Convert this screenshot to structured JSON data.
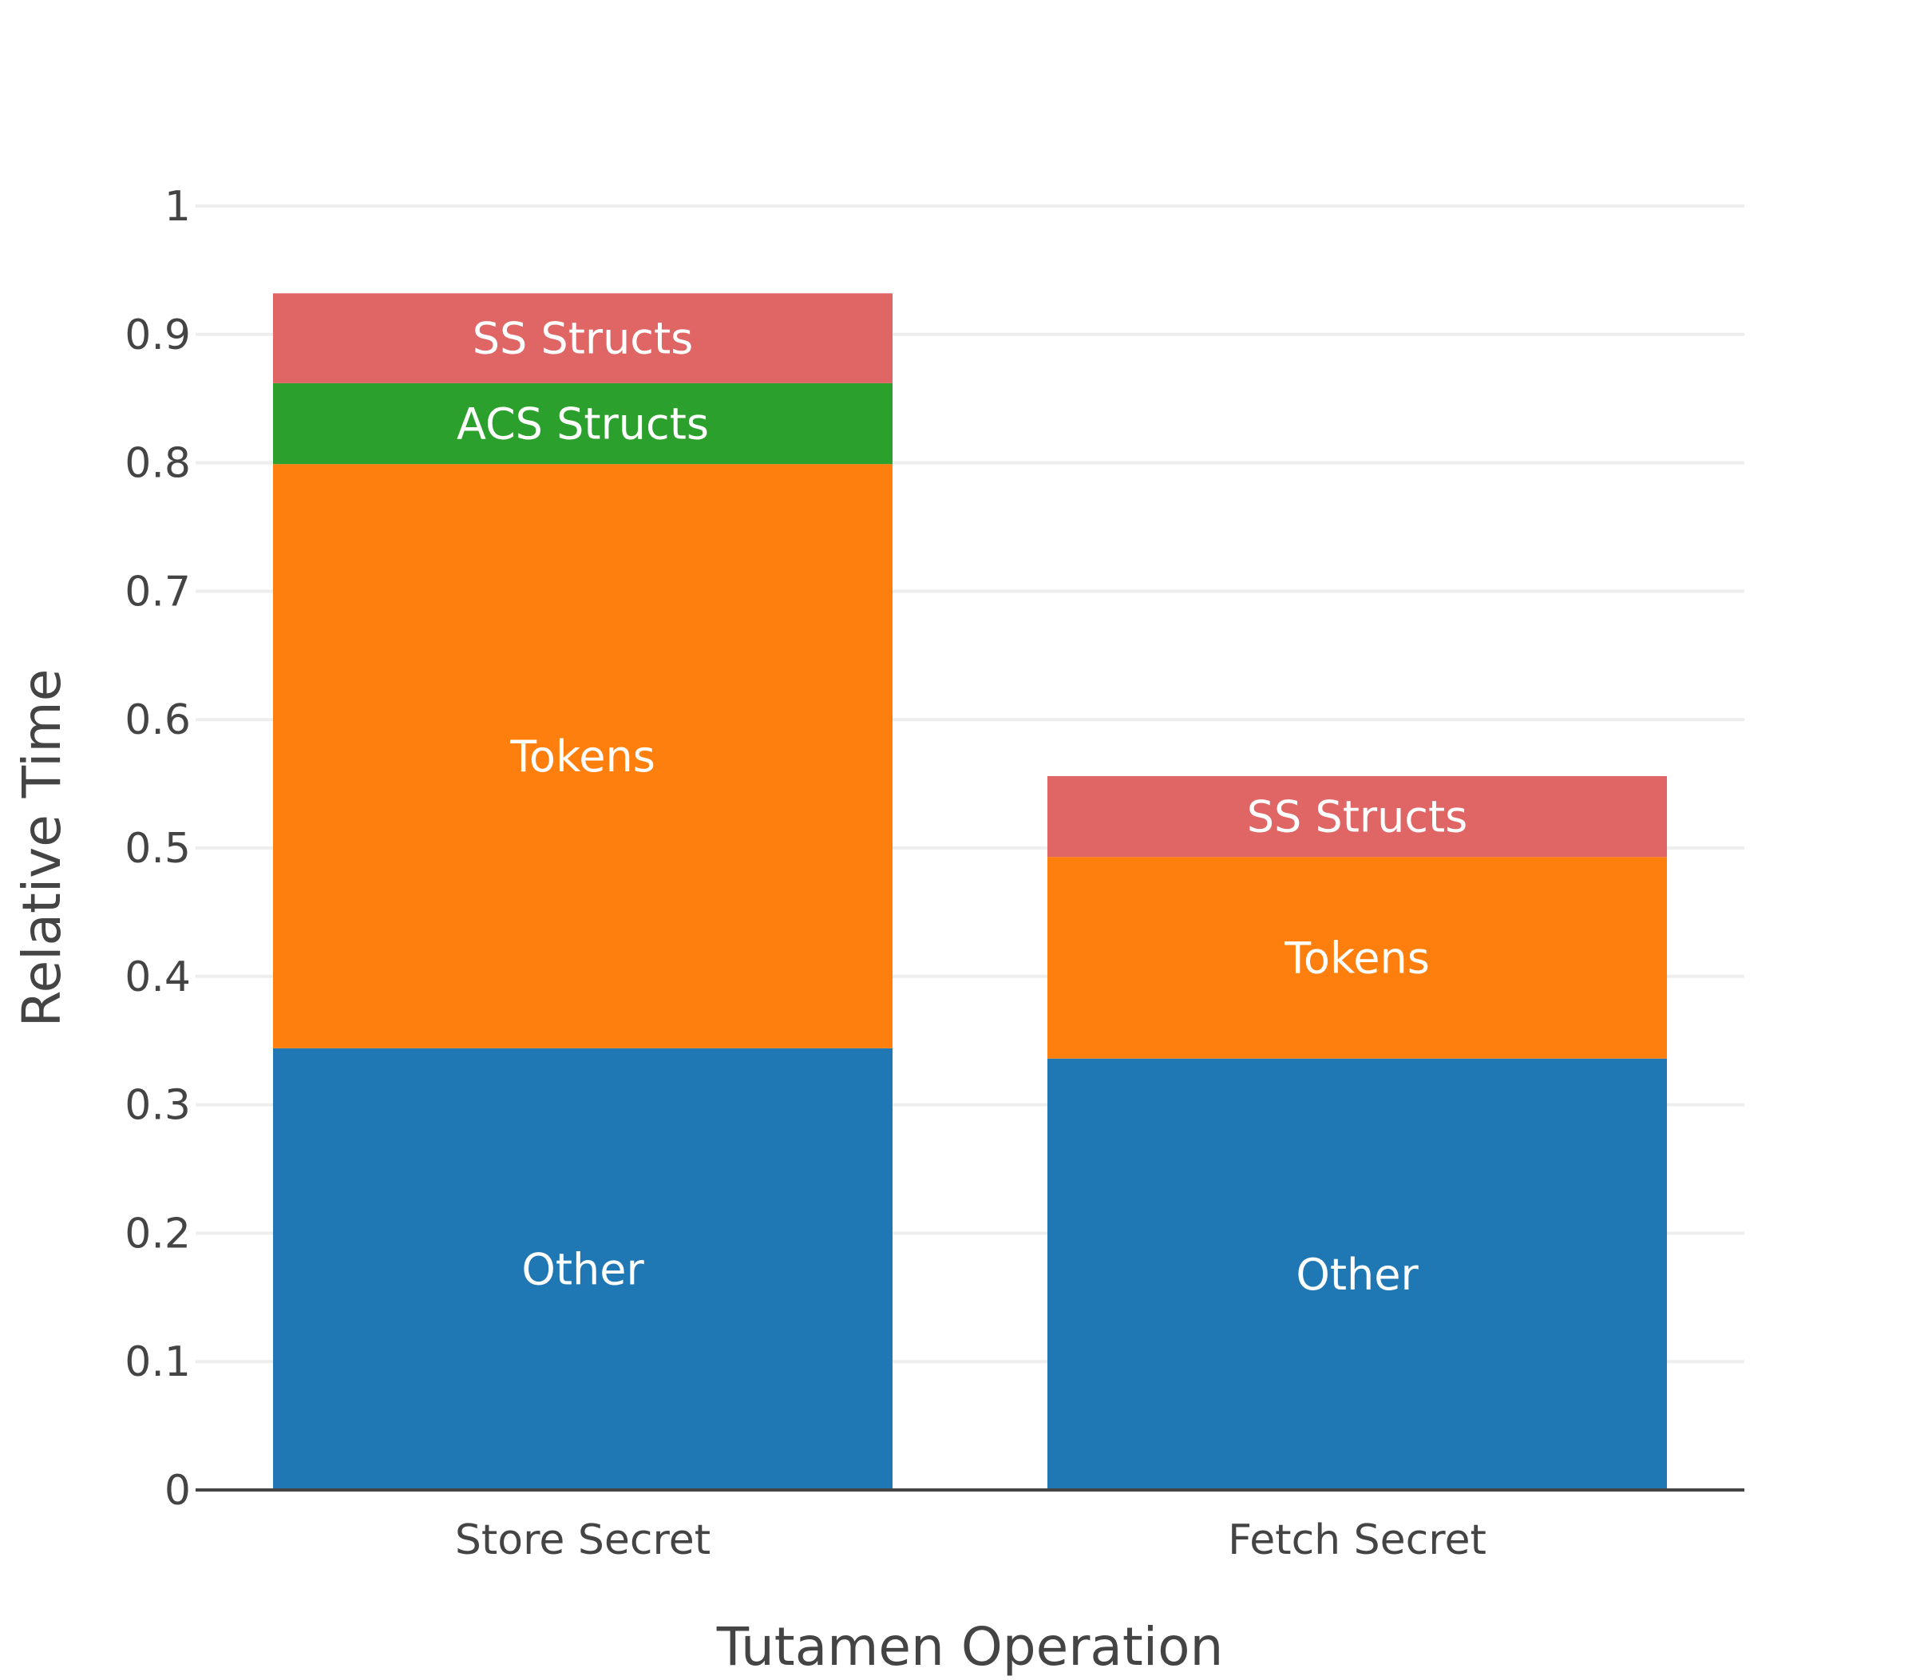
{
  "chart_data": {
    "type": "bar",
    "stacked": true,
    "title": "",
    "xlabel": "Tutamen Operation",
    "ylabel": "Relative Time",
    "categories": [
      "Store Secret",
      "Fetch Secret"
    ],
    "ylim": [
      0,
      1
    ],
    "yticks": [
      "0",
      "0.1",
      "0.2",
      "0.3",
      "0.4",
      "0.5",
      "0.6",
      "0.7",
      "0.8",
      "0.9",
      "1"
    ],
    "grid": true,
    "legend": "none",
    "series": [
      {
        "name": "Other",
        "color": "#1f77b4",
        "values": [
          0.344,
          0.336
        ],
        "labels": [
          "Other",
          "Other"
        ]
      },
      {
        "name": "Tokens",
        "color": "#ff7f0e",
        "values": [
          0.455,
          0.157
        ],
        "labels": [
          "Tokens",
          "Tokens"
        ]
      },
      {
        "name": "ACS Structs",
        "color": "#2ca02c",
        "values": [
          0.063,
          0
        ],
        "labels": [
          "ACS Structs",
          ""
        ]
      },
      {
        "name": "SS Structs",
        "color": "#e06666",
        "values": [
          0.07,
          0.063
        ],
        "labels": [
          "SS Structs",
          "SS Structs"
        ]
      }
    ]
  }
}
